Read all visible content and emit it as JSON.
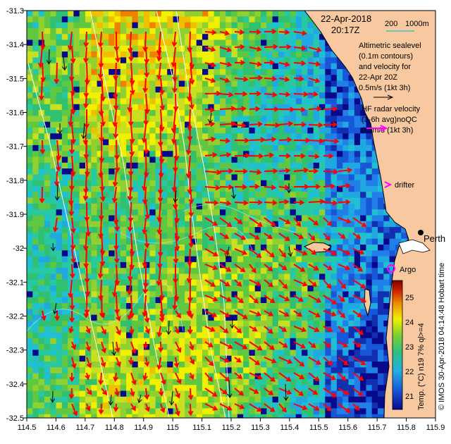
{
  "header": {
    "date": "22-Apr-2018",
    "time": "20:17Z"
  },
  "scale_bar": {
    "label_left": "200",
    "label_right": "1000m",
    "color": "#40c0c0"
  },
  "legend": {
    "altimetric_lines": [
      "Altimetric sealevel",
      "(0.1m contours)",
      "and velocity for",
      "22-Apr 20Z",
      "0.5m/s (1kt 3h)"
    ],
    "hf_radar_lines": [
      "HF radar velocity",
      "(3-6h avg)noQC",
      "0.5m/s (1kt 3h)"
    ],
    "hf_color": "#ff00ff",
    "altimetric_color": "#000000",
    "drifter_label": "drifter",
    "argo_label": "Argo",
    "city_label": "Perth"
  },
  "colorbar": {
    "ticks": [
      "25",
      "24",
      "23",
      "22",
      "21"
    ],
    "title": "Temp. (°C) n19 7% ql>=4",
    "vmin": 20.4,
    "vmax": 25.7
  },
  "credit": "© IMOS 30-Apr-2018 04:14:48 Hobart time",
  "axes": {
    "x_ticks": [
      "114.5",
      "114.6",
      "114.7",
      "114.8",
      "114.9",
      "115",
      "115.1",
      "115.2",
      "115.3",
      "115.4",
      "115.5",
      "115.6",
      "115.7",
      "115.8",
      "115.9"
    ],
    "y_ticks": [
      "-31.3",
      "-31.4",
      "-31.5",
      "-31.6",
      "-31.7",
      "-31.8",
      "-31.9",
      "-32",
      "-32.1",
      "-32.2",
      "-32.3",
      "-32.4",
      "-32.5"
    ],
    "xlim": [
      114.5,
      115.9
    ],
    "ylim": [
      -32.5,
      -31.3
    ]
  },
  "colors": {
    "land": "#f8c8a0",
    "coast": "#000000",
    "hf_arrow": "#ff0000",
    "alt_arrow": "#000000",
    "contour": "#ffffff"
  }
}
